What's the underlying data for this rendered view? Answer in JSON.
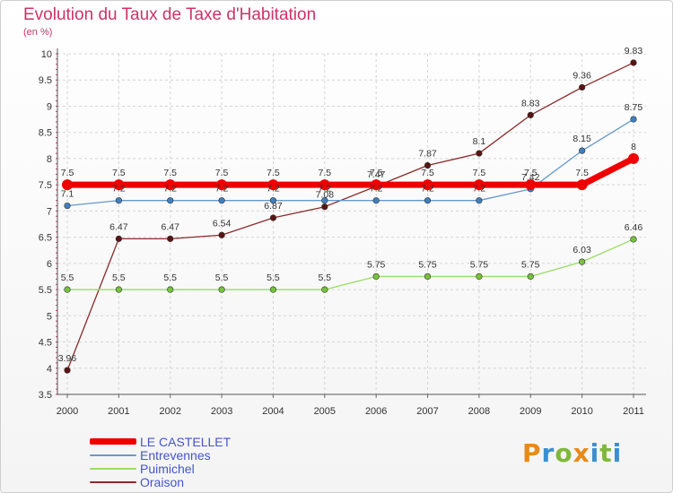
{
  "title": "Evolution du Taux de Taxe d'Habitation",
  "unit_label": "(en %)",
  "logo": {
    "text": "Proxiti",
    "letter_colors": [
      "#e88a1a",
      "#3a8fd0",
      "#7fb83a",
      "#e88a1a",
      "#3a8fd0",
      "#7fb83a",
      "#3a8fd0"
    ]
  },
  "chart_data": {
    "type": "line",
    "title": "Evolution du Taux de Taxe d'Habitation",
    "ylabel": "(en %)",
    "xlabel": "",
    "categories": [
      "2000",
      "2001",
      "2002",
      "2003",
      "2004",
      "2005",
      "2006",
      "2007",
      "2008",
      "2009",
      "2010",
      "2011"
    ],
    "ylim": [
      3.5,
      10
    ],
    "yticks": [
      "3.5",
      "4",
      "4.5",
      "5",
      "5.5",
      "6",
      "6.5",
      "7",
      "7.5",
      "8",
      "8.5",
      "9",
      "9.5",
      "10"
    ],
    "grid": true,
    "legend_position": "bottom-left",
    "series": [
      {
        "name": "Oraison",
        "color": "#8b2a2a",
        "dot_color": "#5a1414",
        "emphasis": "normal",
        "values": [
          3.96,
          6.47,
          6.47,
          6.54,
          6.87,
          7.08,
          7.47,
          7.87,
          8.1,
          8.83,
          9.36,
          9.83
        ],
        "labels": [
          "3.96",
          "6.47",
          "6.47",
          "6.54",
          "6.87",
          "7.08",
          "7.47",
          "7.87",
          "8.1",
          "8.83",
          "9.36",
          "9.83"
        ]
      },
      {
        "name": "Entrevennes",
        "color": "#6699cc",
        "dot_color": "#3f7fbf",
        "emphasis": "normal",
        "values": [
          7.1,
          7.2,
          7.2,
          7.2,
          7.2,
          7.2,
          7.2,
          7.2,
          7.2,
          7.42,
          8.15,
          8.75
        ],
        "labels": [
          "7.1",
          "7.2",
          "7.2",
          "7.2",
          "7.2",
          "7.2",
          "7.2",
          "7.2",
          "7.2",
          "7.42",
          "8.15",
          "8.75"
        ]
      },
      {
        "name": "Puimichel",
        "color": "#99dd66",
        "dot_color": "#77c23f",
        "emphasis": "normal",
        "values": [
          5.5,
          5.5,
          5.5,
          5.5,
          5.5,
          5.5,
          5.75,
          5.75,
          5.75,
          5.75,
          6.03,
          6.46
        ],
        "labels": [
          "5.5",
          "5.5",
          "5.5",
          "5.5",
          "5.5",
          "5.5",
          "5.75",
          "5.75",
          "5.75",
          "5.75",
          "6.03",
          "6.46"
        ]
      },
      {
        "name": "LE CASTELLET",
        "color": "#ee0000",
        "dot_color": "#ee0000",
        "emphasis": "bold",
        "values": [
          7.5,
          7.5,
          7.5,
          7.5,
          7.5,
          7.5,
          7.5,
          7.5,
          7.5,
          7.5,
          7.5,
          8
        ],
        "labels": [
          "7.5",
          "7.5",
          "7.5",
          "7.5",
          "7.5",
          "7.5",
          "7.5",
          "7.5",
          "7.5",
          "7.5",
          "7.5",
          "8"
        ]
      }
    ],
    "legend_order": [
      "LE CASTELLET",
      "Entrevennes",
      "Puimichel",
      "Oraison"
    ]
  }
}
